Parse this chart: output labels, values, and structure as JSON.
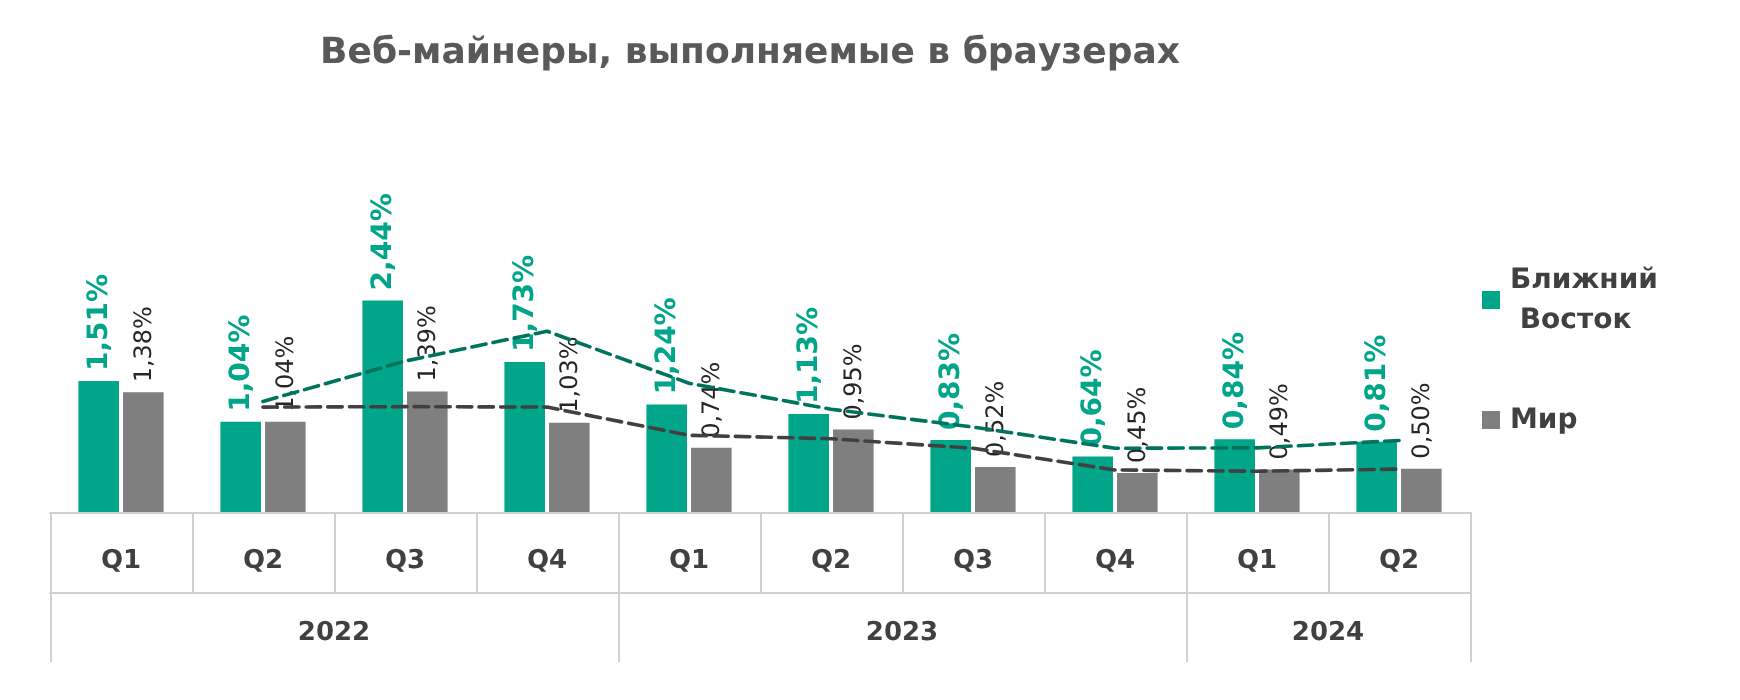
{
  "chart_data": {
    "type": "bar",
    "title": "Веб-майнеры, выполняемые в браузерах",
    "categories": [
      "Q1",
      "Q2",
      "Q3",
      "Q4",
      "Q1",
      "Q2",
      "Q3",
      "Q4",
      "Q1",
      "Q2"
    ],
    "annotations": [
      "2022",
      "2023",
      "2024"
    ],
    "series": [
      {
        "name": "Ближний Восток",
        "color": "#00a58a",
        "values": [
          1.51,
          1.04,
          2.44,
          1.73,
          1.24,
          1.13,
          0.83,
          0.64,
          0.84,
          0.81
        ],
        "value_labels": [
          "1,51%",
          "1,04%",
          "2,44%",
          "1,73%",
          "1,24%",
          "1,13%",
          "0,83%",
          "0,64%",
          "0,84%",
          "0,81%"
        ]
      },
      {
        "name": "Мир",
        "color": "#7f7f7f",
        "values": [
          1.38,
          1.04,
          1.39,
          1.03,
          0.74,
          0.95,
          0.52,
          0.45,
          0.49,
          0.5
        ],
        "value_labels": [
          "1,38%",
          "1,04%",
          "1,39%",
          "1,03%",
          "0,74%",
          "0,95%",
          "0,52%",
          "0,45%",
          "0,49%",
          "0,50%"
        ]
      },
      {
        "type": "line",
        "color": "#00735f",
        "line_style": "dashed",
        "values": [
          null,
          1.275,
          1.74,
          2.085,
          1.485,
          1.185,
          0.98,
          0.735,
          0.74,
          0.825
        ]
      },
      {
        "type": "line",
        "color": "#404040",
        "line_style": "dashed",
        "values": [
          null,
          1.21,
          1.215,
          1.21,
          0.885,
          0.845,
          0.735,
          0.485,
          0.47,
          0.495
        ]
      }
    ],
    "legend": "right"
  }
}
